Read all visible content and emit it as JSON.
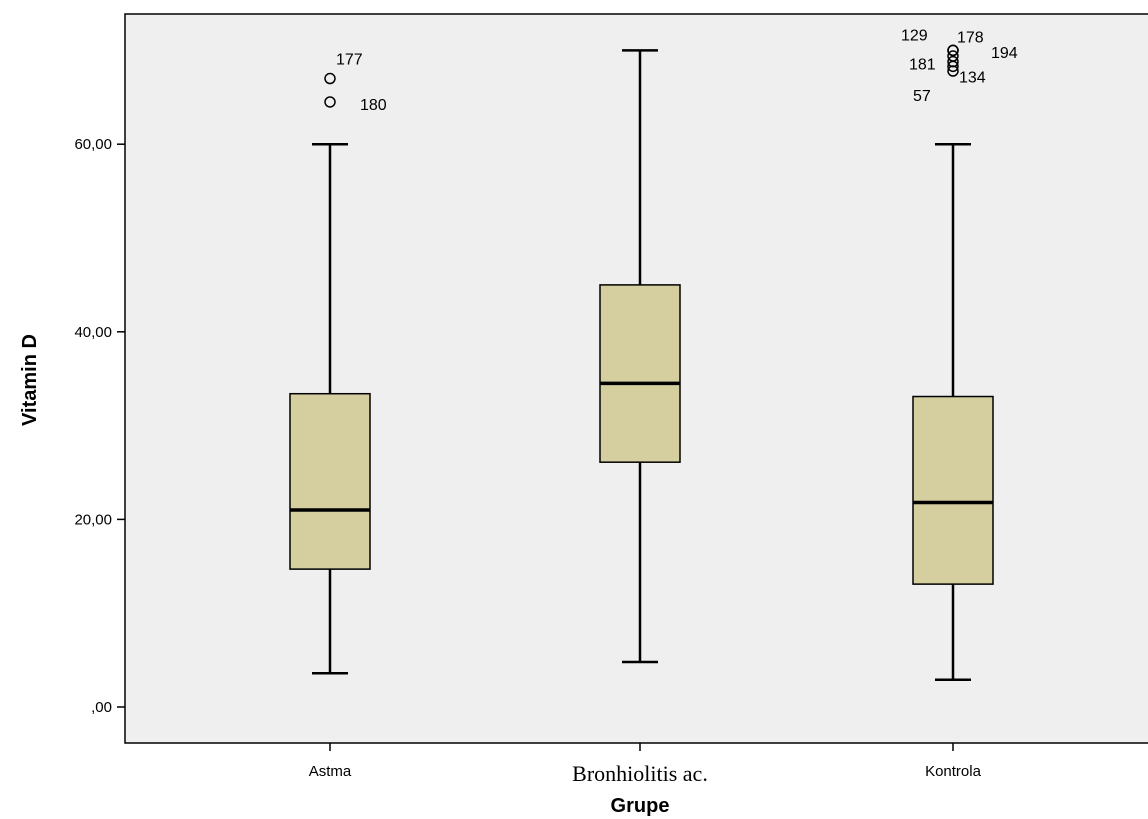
{
  "chart_data": {
    "type": "boxplot",
    "xlabel": "Grupe",
    "ylabel": "Vitamin D",
    "ylim": [
      -4,
      74
    ],
    "yticks": [
      {
        "value": 0,
        "label": ",00"
      },
      {
        "value": 20,
        "label": "20,00"
      },
      {
        "value": 40,
        "label": "40,00"
      },
      {
        "value": 60,
        "label": "60,00"
      }
    ],
    "grid": false,
    "box_color": "#d5ce9f",
    "plot_background": "#efefef",
    "categories": [
      "Astma",
      "Bronhiolitis ac.",
      "Kontrola"
    ],
    "boxes": [
      {
        "category": "Astma",
        "whisker_low": 3.6,
        "q1": 14.7,
        "median": 21.0,
        "q3": 33.4,
        "whisker_high": 60.0,
        "outliers": [
          {
            "value": 67.0,
            "label": "177"
          },
          {
            "value": 64.5,
            "label": "180"
          }
        ]
      },
      {
        "category": "Bronhiolitis ac.",
        "whisker_low": 4.8,
        "q1": 26.1,
        "median": 34.5,
        "q3": 45.0,
        "whisker_high": 70.0,
        "outliers": []
      },
      {
        "category": "Kontrola",
        "whisker_low": 2.9,
        "q1": 13.1,
        "median": 21.8,
        "q3": 33.1,
        "whisker_high": 60.0,
        "outliers": [
          {
            "value": 70.0,
            "label": "129"
          },
          {
            "value": 70.0,
            "label": "178"
          },
          {
            "value": 69.4,
            "label": "194"
          },
          {
            "value": 68.8,
            "label": "181"
          },
          {
            "value": 68.3,
            "label": "134"
          },
          {
            "value": 67.8,
            "label": "57"
          }
        ]
      }
    ]
  }
}
